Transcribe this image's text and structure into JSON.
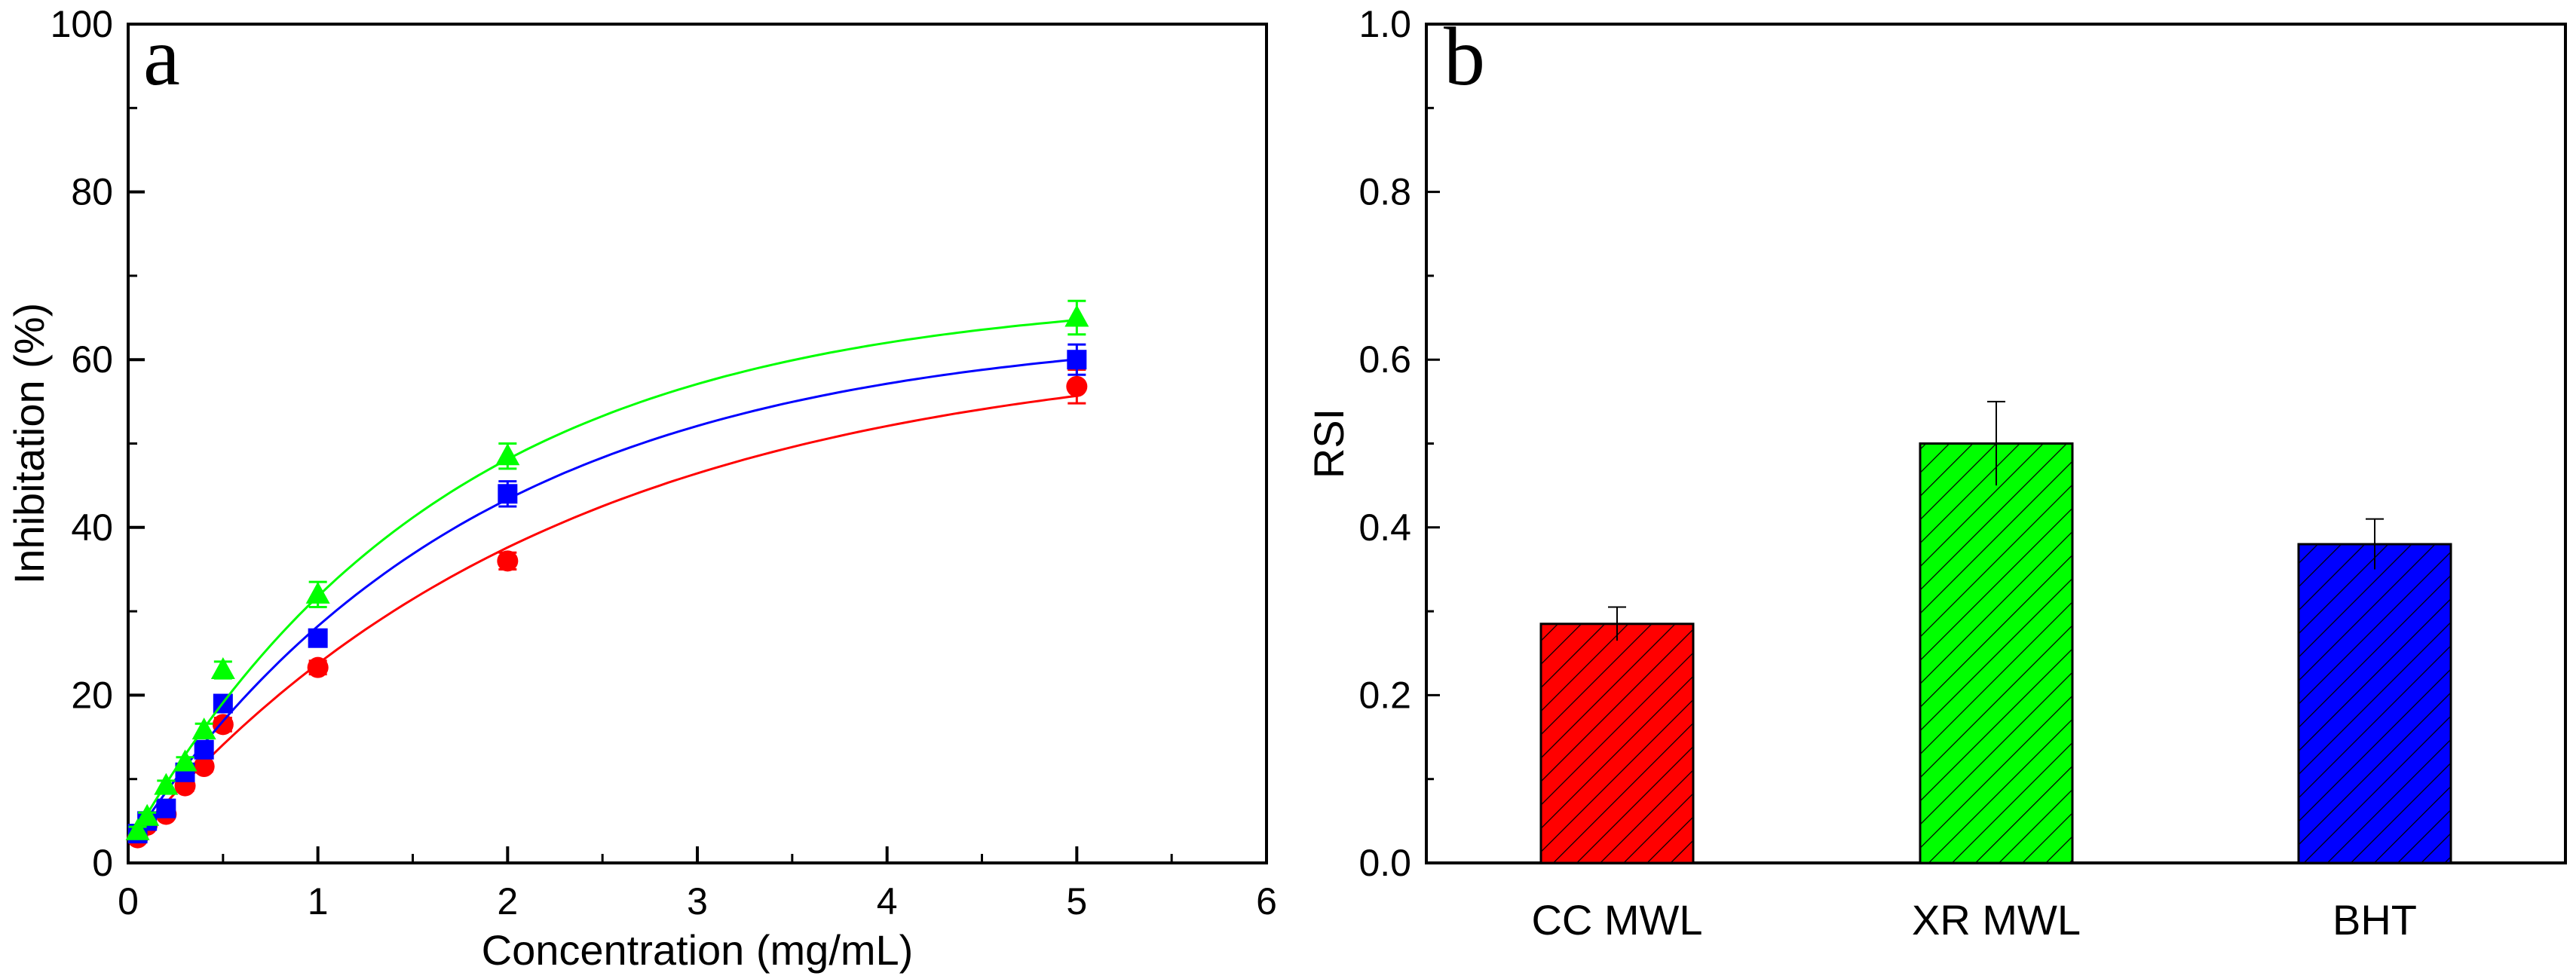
{
  "chart_data": [
    {
      "panel_label": "a",
      "type": "scatter",
      "xlabel": "Concentration (mg/mL)",
      "ylabel": "Inhibitation (%)",
      "xlim": [
        0,
        6
      ],
      "ylim": [
        0,
        100
      ],
      "xticks": [
        "0",
        "1",
        "2",
        "3",
        "4",
        "5",
        "6"
      ],
      "yticks": [
        "0",
        "20",
        "40",
        "60",
        "80",
        "100"
      ],
      "x": [
        0.05,
        0.1,
        0.2,
        0.3,
        0.4,
        0.5,
        1,
        2,
        5
      ],
      "series": [
        {
          "name": "red",
          "color": "#ff0000",
          "marker": "circle",
          "values": [
            3.0,
            4.5,
            5.8,
            9.2,
            11.5,
            16.5,
            23.3,
            36.0,
            56.8
          ],
          "errors": [
            0.5,
            0.5,
            0.5,
            0.6,
            0.6,
            0.8,
            0.8,
            1.0,
            2.0
          ],
          "fit": {
            "c": 2,
            "A": 60,
            "k": 0.45
          }
        },
        {
          "name": "blue",
          "color": "#0000ff",
          "marker": "square",
          "values": [
            3.5,
            5.0,
            6.5,
            10.8,
            13.5,
            19.0,
            26.8,
            44.0,
            60.0
          ],
          "errors": [
            0.5,
            0.5,
            0.6,
            0.6,
            0.7,
            0.8,
            0.8,
            1.5,
            1.8
          ],
          "fit": {
            "c": 2,
            "A": 62,
            "k": 0.55
          }
        },
        {
          "name": "green",
          "color": "#00ff00",
          "marker": "triangle",
          "values": [
            3.8,
            5.5,
            9.2,
            12.0,
            15.8,
            23.0,
            32.0,
            48.5,
            65.0
          ],
          "errors": [
            0.5,
            0.5,
            0.6,
            0.6,
            0.8,
            1.0,
            1.5,
            1.5,
            2.0
          ],
          "fit": {
            "c": 2,
            "A": 66,
            "k": 0.6
          }
        }
      ]
    },
    {
      "panel_label": "b",
      "type": "bar",
      "ylabel": "RSI",
      "ylim": [
        0,
        1.0
      ],
      "yticks": [
        "0.0",
        "0.2",
        "0.4",
        "0.6",
        "0.8",
        "1.0"
      ],
      "categories": [
        "CC MWL",
        "XR MWL",
        "BHT"
      ],
      "values": [
        0.285,
        0.5,
        0.38
      ],
      "errors": [
        0.02,
        0.05,
        0.03
      ],
      "colors": [
        "#ff0000",
        "#00ff00",
        "#0000ff"
      ],
      "hatch": "diagonal"
    }
  ]
}
